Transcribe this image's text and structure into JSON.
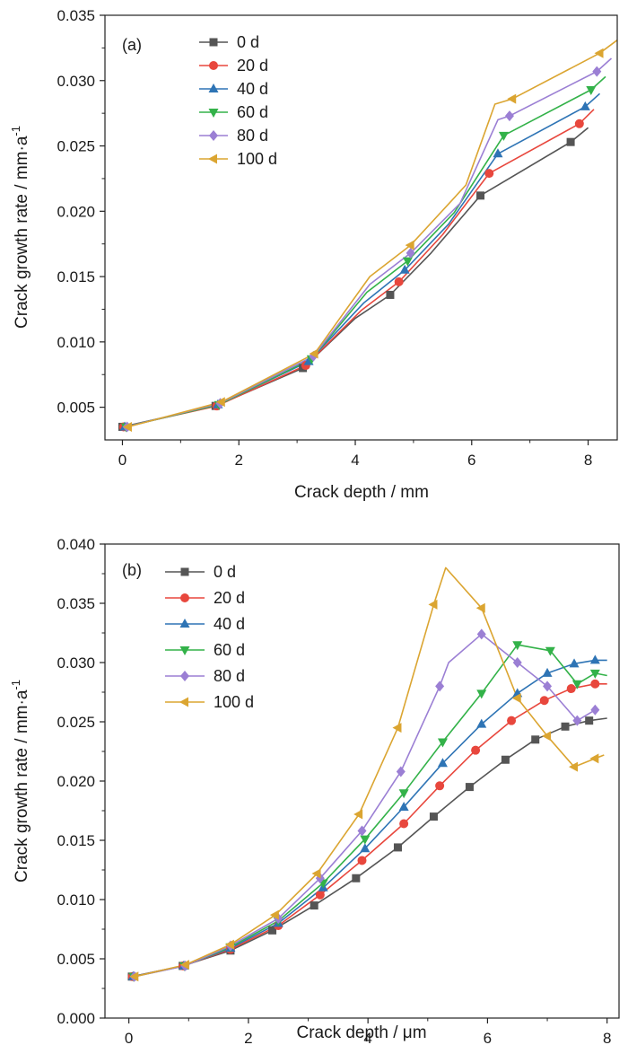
{
  "chart_data": [
    {
      "type": "line",
      "panel_label": "(a)",
      "xlabel": "Crack depth / mm",
      "ylabel": "Crack growth rate / mm·a",
      "ylabel_sup": "-1",
      "xlim": [
        -0.3,
        8.5
      ],
      "ylim": [
        0.0025,
        0.035
      ],
      "xticks": [
        0,
        2,
        4,
        6,
        8
      ],
      "xtick_labels": [
        "0",
        "2",
        "4",
        "6",
        "8"
      ],
      "yticks": [
        0.005,
        0.01,
        0.015,
        0.02,
        0.025,
        0.03,
        0.035
      ],
      "ytick_labels": [
        "0.005",
        "0.010",
        "0.015",
        "0.020",
        "0.025",
        "0.030",
        "0.035"
      ],
      "grid": false,
      "legend_position": "top-left",
      "series": [
        {
          "name": "0 d",
          "color": "#555555",
          "marker": "square",
          "line_x": [
            0.0,
            1.6,
            3.1,
            4.0,
            4.6,
            5.3,
            6.15,
            7.7,
            8.0
          ],
          "line_y": [
            0.0035,
            0.0051,
            0.008,
            0.0118,
            0.0136,
            0.0168,
            0.0212,
            0.0253,
            0.0264
          ],
          "markers_x": [
            0.0,
            1.6,
            3.1,
            4.6,
            6.15,
            7.7
          ],
          "markers_y": [
            0.0035,
            0.0051,
            0.008,
            0.0136,
            0.0212,
            0.0253
          ]
        },
        {
          "name": "20 d",
          "color": "#e8473d",
          "marker": "circle",
          "line_x": [
            0.02,
            1.62,
            3.15,
            4.1,
            4.75,
            5.5,
            6.3,
            7.85,
            8.1
          ],
          "line_y": [
            0.0035,
            0.0051,
            0.0082,
            0.0124,
            0.0146,
            0.0182,
            0.0229,
            0.0267,
            0.0278
          ],
          "markers_x": [
            0.02,
            1.62,
            3.15,
            4.75,
            6.3,
            7.85
          ],
          "markers_y": [
            0.0035,
            0.0051,
            0.0082,
            0.0146,
            0.0229,
            0.0267
          ]
        },
        {
          "name": "40 d",
          "color": "#2e74b5",
          "marker": "triangle-up",
          "line_x": [
            0.04,
            1.64,
            3.2,
            4.15,
            4.85,
            5.6,
            6.45,
            7.95,
            8.2
          ],
          "line_y": [
            0.0035,
            0.0052,
            0.0085,
            0.013,
            0.0155,
            0.019,
            0.0244,
            0.028,
            0.029
          ],
          "markers_x": [
            0.04,
            1.64,
            3.2,
            4.85,
            6.45,
            7.95
          ],
          "markers_y": [
            0.0035,
            0.0052,
            0.0085,
            0.0155,
            0.0244,
            0.028
          ]
        },
        {
          "name": "60 d",
          "color": "#33b249",
          "marker": "triangle-down",
          "line_x": [
            0.06,
            1.66,
            3.25,
            4.2,
            4.9,
            5.7,
            6.55,
            8.05,
            8.3
          ],
          "line_y": [
            0.0035,
            0.0052,
            0.0087,
            0.0138,
            0.0162,
            0.0199,
            0.0258,
            0.0293,
            0.0303
          ],
          "markers_x": [
            0.06,
            1.66,
            3.25,
            4.9,
            6.55,
            8.05
          ],
          "markers_y": [
            0.0035,
            0.0052,
            0.0087,
            0.0162,
            0.0258,
            0.0293
          ]
        },
        {
          "name": "80 d",
          "color": "#9b7fd4",
          "marker": "diamond",
          "line_x": [
            0.08,
            1.68,
            3.28,
            4.25,
            4.95,
            5.8,
            6.45,
            6.65,
            8.15,
            8.4
          ],
          "line_y": [
            0.0035,
            0.0053,
            0.0089,
            0.0144,
            0.0168,
            0.0206,
            0.027,
            0.0273,
            0.0307,
            0.0317
          ],
          "markers_x": [
            0.08,
            1.68,
            3.28,
            4.95,
            6.65,
            8.15
          ],
          "markers_y": [
            0.0035,
            0.0053,
            0.0089,
            0.0168,
            0.0273,
            0.0307
          ]
        },
        {
          "name": "100 d",
          "color": "#dba531",
          "marker": "triangle-left",
          "line_x": [
            0.1,
            1.7,
            3.3,
            4.25,
            4.95,
            5.9,
            6.4,
            6.7,
            8.2,
            8.5
          ],
          "line_y": [
            0.0035,
            0.0054,
            0.0091,
            0.015,
            0.0174,
            0.022,
            0.0282,
            0.0286,
            0.0321,
            0.0331
          ],
          "markers_x": [
            0.1,
            1.7,
            3.3,
            4.95,
            6.7,
            8.2
          ],
          "markers_y": [
            0.0035,
            0.0054,
            0.0091,
            0.0174,
            0.0286,
            0.0321
          ]
        }
      ]
    },
    {
      "type": "line",
      "panel_label": "(b)",
      "xlabel": "Crack depth / μm",
      "ylabel": "Crack growth rate / mm·a",
      "ylabel_sup": "-1",
      "xlim": [
        -0.4,
        8.2
      ],
      "ylim": [
        0.0,
        0.04
      ],
      "xticks": [
        0,
        2,
        4,
        6,
        8
      ],
      "xtick_labels": [
        "0",
        "2",
        "4",
        "6",
        "8"
      ],
      "yticks": [
        0.0,
        0.005,
        0.01,
        0.015,
        0.02,
        0.025,
        0.03,
        0.035,
        0.04
      ],
      "ytick_labels": [
        "0.000",
        "0.005",
        "0.010",
        "0.015",
        "0.020",
        "0.025",
        "0.030",
        "0.035",
        "0.040"
      ],
      "grid": false,
      "legend_position": "top-left",
      "series": [
        {
          "name": "0 d",
          "color": "#555555",
          "marker": "square",
          "line_x": [
            0.05,
            0.9,
            1.7,
            2.4,
            3.1,
            3.8,
            4.5,
            5.1,
            5.7,
            6.3,
            6.8,
            7.3,
            7.7,
            8.0
          ],
          "line_y": [
            0.0035,
            0.0044,
            0.0057,
            0.0074,
            0.0095,
            0.0118,
            0.0144,
            0.017,
            0.0195,
            0.0218,
            0.0235,
            0.0246,
            0.0251,
            0.0253
          ],
          "markers_x": [
            0.05,
            0.9,
            1.7,
            2.4,
            3.1,
            3.8,
            4.5,
            5.1,
            5.7,
            6.3,
            6.8,
            7.3,
            7.7
          ],
          "markers_y": [
            0.0035,
            0.0044,
            0.0057,
            0.0074,
            0.0095,
            0.0118,
            0.0144,
            0.017,
            0.0195,
            0.0218,
            0.0235,
            0.0246,
            0.0251
          ]
        },
        {
          "name": "20 d",
          "color": "#e8473d",
          "marker": "circle",
          "line_x": [
            0.06,
            0.91,
            1.7,
            2.5,
            3.2,
            3.9,
            4.6,
            5.2,
            5.8,
            6.4,
            6.95,
            7.4,
            7.8,
            8.0
          ],
          "line_y": [
            0.0035,
            0.0044,
            0.0058,
            0.0078,
            0.0104,
            0.0133,
            0.0164,
            0.0196,
            0.0226,
            0.0251,
            0.0268,
            0.0278,
            0.0282,
            0.0282
          ],
          "markers_x": [
            0.06,
            0.91,
            1.7,
            2.5,
            3.2,
            3.9,
            4.6,
            5.2,
            5.8,
            6.4,
            6.95,
            7.4,
            7.8
          ],
          "markers_y": [
            0.0035,
            0.0044,
            0.0058,
            0.0078,
            0.0104,
            0.0133,
            0.0164,
            0.0196,
            0.0226,
            0.0251,
            0.0268,
            0.0278,
            0.0282
          ]
        },
        {
          "name": "40 d",
          "color": "#2e74b5",
          "marker": "triangle-up",
          "line_x": [
            0.07,
            0.92,
            1.7,
            2.5,
            3.25,
            3.95,
            4.6,
            5.25,
            5.9,
            6.5,
            7.0,
            7.45,
            7.8,
            8.0
          ],
          "line_y": [
            0.0035,
            0.0044,
            0.0059,
            0.008,
            0.011,
            0.0143,
            0.0178,
            0.0215,
            0.0248,
            0.0274,
            0.0291,
            0.0299,
            0.0302,
            0.0302
          ],
          "markers_x": [
            0.07,
            0.92,
            1.7,
            2.5,
            3.25,
            3.95,
            4.6,
            5.25,
            5.9,
            6.5,
            7.0,
            7.45,
            7.8
          ],
          "markers_y": [
            0.0035,
            0.0044,
            0.0059,
            0.008,
            0.011,
            0.0143,
            0.0178,
            0.0215,
            0.0248,
            0.0274,
            0.0291,
            0.0299,
            0.0302
          ]
        },
        {
          "name": "60 d",
          "color": "#33b249",
          "marker": "triangle-down",
          "line_x": [
            0.08,
            0.93,
            1.7,
            2.5,
            3.25,
            3.95,
            4.6,
            5.25,
            5.9,
            6.5,
            7.05,
            7.5,
            7.8,
            8.0
          ],
          "line_y": [
            0.0035,
            0.0044,
            0.006,
            0.0082,
            0.0114,
            0.0151,
            0.019,
            0.0233,
            0.0274,
            0.0315,
            0.031,
            0.0282,
            0.0291,
            0.0289
          ],
          "markers_x": [
            0.08,
            0.93,
            1.7,
            2.5,
            3.25,
            3.95,
            4.6,
            5.25,
            5.9,
            6.5,
            7.05,
            7.5,
            7.8
          ],
          "markers_y": [
            0.0035,
            0.0044,
            0.006,
            0.0082,
            0.0114,
            0.0151,
            0.019,
            0.0233,
            0.0274,
            0.0315,
            0.031,
            0.0282,
            0.0291
          ]
        },
        {
          "name": "80 d",
          "color": "#9b7fd4",
          "marker": "diamond",
          "line_x": [
            0.09,
            0.94,
            1.7,
            2.5,
            3.2,
            3.9,
            4.55,
            5.2,
            5.35,
            5.9,
            6.5,
            7.0,
            7.5,
            7.8
          ],
          "line_y": [
            0.0035,
            0.0044,
            0.0061,
            0.0084,
            0.0118,
            0.0158,
            0.0208,
            0.028,
            0.03,
            0.0324,
            0.03,
            0.028,
            0.0251,
            0.026
          ],
          "markers_x": [
            0.09,
            0.94,
            1.7,
            2.5,
            3.2,
            3.9,
            4.55,
            5.2,
            5.9,
            6.5,
            7.0,
            7.5,
            7.8
          ],
          "markers_y": [
            0.0035,
            0.0044,
            0.0061,
            0.0084,
            0.0118,
            0.0158,
            0.0208,
            0.028,
            0.0324,
            0.03,
            0.028,
            0.0251,
            0.026
          ]
        },
        {
          "name": "100 d",
          "color": "#dba531",
          "marker": "triangle-left",
          "line_x": [
            0.1,
            0.95,
            1.7,
            2.45,
            3.15,
            3.85,
            4.5,
            5.1,
            5.3,
            5.9,
            6.5,
            7.0,
            7.45,
            7.8,
            7.95
          ],
          "line_y": [
            0.0035,
            0.0045,
            0.0062,
            0.0087,
            0.0122,
            0.0172,
            0.0245,
            0.0349,
            0.038,
            0.0346,
            0.027,
            0.0238,
            0.0212,
            0.0219,
            0.0222
          ],
          "markers_x": [
            0.1,
            0.95,
            1.7,
            2.45,
            3.15,
            3.85,
            4.5,
            5.1,
            5.9,
            6.5,
            7.0,
            7.45,
            7.8
          ],
          "markers_y": [
            0.0035,
            0.0045,
            0.0062,
            0.0087,
            0.0122,
            0.0172,
            0.0245,
            0.0349,
            0.0346,
            0.027,
            0.0238,
            0.0212,
            0.0219
          ]
        }
      ]
    }
  ]
}
